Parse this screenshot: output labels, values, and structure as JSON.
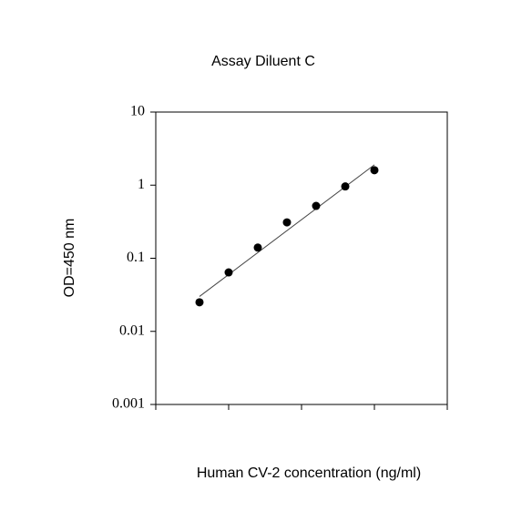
{
  "chart_data": {
    "type": "scatter",
    "title": "Assay Diluent C",
    "x_label": "Human CV-2 concentration (ng/ml)",
    "y_label": "OD=450 nm",
    "x": [
      1.5,
      2.5,
      3.5,
      4.5,
      5.5,
      6.5,
      7.5
    ],
    "values": [
      0.025,
      0.064,
      0.14,
      0.31,
      0.52,
      0.96,
      1.6
    ],
    "color": "#000000",
    "fit": {
      "x": [
        1.5,
        7.5
      ],
      "values": [
        0.03,
        1.9
      ]
    },
    "xlim": [
      0,
      10
    ],
    "xticks": [
      0,
      2.5,
      5,
      7.5,
      10
    ],
    "ylim": [
      0.001,
      10
    ],
    "yticks": [
      0.001,
      0.01,
      0.1,
      1,
      10
    ],
    "log_y": true,
    "grid": false
  }
}
